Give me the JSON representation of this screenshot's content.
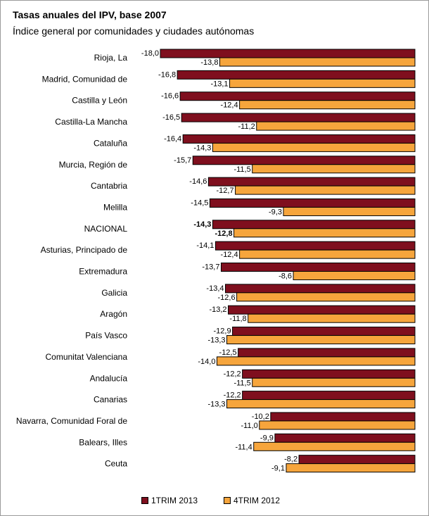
{
  "header": {
    "title": "Tasas anuales del IPV, base 2007",
    "subtitle": "Índice general por comunidades y ciudades autónomas"
  },
  "colors": {
    "series_1": "#7f0f1e",
    "series_2": "#f6a53c"
  },
  "chart_data": {
    "type": "bar",
    "orientation": "horizontal",
    "title": "Tasas anuales del IPV, base 2007",
    "subtitle": "Índice general por comunidades y ciudades autónomas",
    "xlim": [
      -18.0,
      0
    ],
    "grid": false,
    "legend": "bottom",
    "bold_category": "NACIONAL",
    "categories": [
      "Rioja, La",
      "Madrid, Comunidad de",
      "Castilla y León",
      "Castilla-La Mancha",
      "Cataluña",
      "Murcia, Región de",
      "Cantabria",
      "Melilla",
      "NACIONAL",
      "Asturias, Principado de",
      "Extremadura",
      "Galicia",
      "Aragón",
      "País Vasco",
      "Comunitat Valenciana",
      "Andalucía",
      "Canarias",
      "Navarra, Comunidad Foral de",
      "Balears, Illes",
      "Ceuta"
    ],
    "series": [
      {
        "name": "1TRIM 2013",
        "values": [
          -18.0,
          -16.8,
          -16.6,
          -16.5,
          -16.4,
          -15.7,
          -14.6,
          -14.5,
          -14.3,
          -14.1,
          -13.7,
          -13.4,
          -13.2,
          -12.9,
          -12.5,
          -12.2,
          -12.2,
          -10.2,
          -9.9,
          -8.2
        ],
        "labels": [
          "-18,0",
          "-16,8",
          "-16,6",
          "-16,5",
          "-16,4",
          "-15,7",
          "-14,6",
          "-14,5",
          "-14,3",
          "-14,1",
          "-13,7",
          "-13,4",
          "-13,2",
          "-12,9",
          "-12,5",
          "-12,2",
          "-12,2",
          "-10,2",
          "-9,9",
          "-8,2"
        ]
      },
      {
        "name": "4TRIM 2012",
        "values": [
          -13.8,
          -13.1,
          -12.4,
          -11.2,
          -14.3,
          -11.5,
          -12.7,
          -9.3,
          -12.8,
          -12.4,
          -8.6,
          -12.6,
          -11.8,
          -13.3,
          -14.0,
          -11.5,
          -13.3,
          -11.0,
          -11.4,
          -9.1
        ],
        "labels": [
          "-13,8",
          "-13,1",
          "-12,4",
          "-11,2",
          "-14,3",
          "-11,5",
          "-12,7",
          "-9,3",
          "-12,8",
          "-12,4",
          "-8,6",
          "-12,6",
          "-11,8",
          "-13,3",
          "-14,0",
          "-11,5",
          "-13,3",
          "-11,0",
          "-11,4",
          "-9,1"
        ]
      }
    ]
  }
}
